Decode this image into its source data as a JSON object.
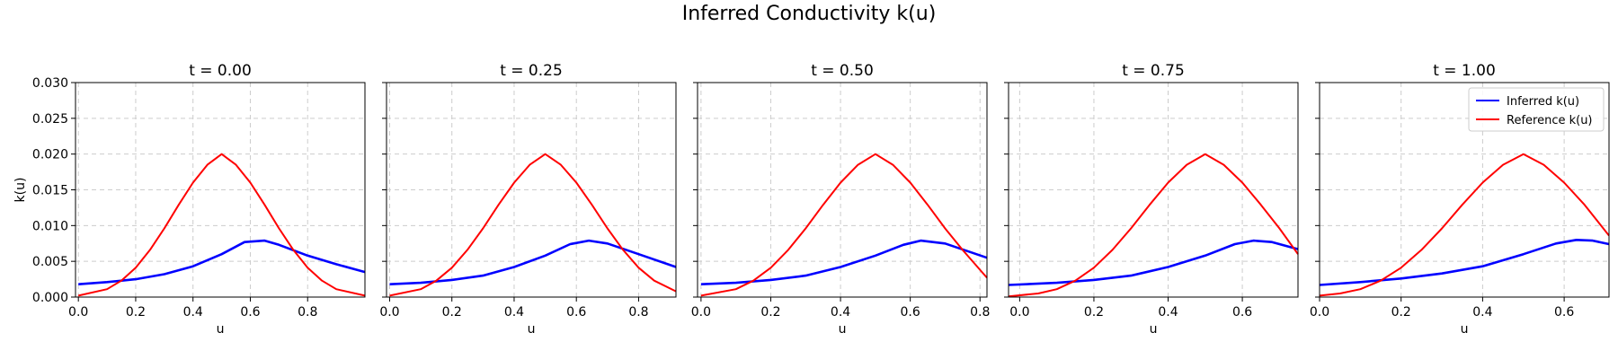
{
  "figure": {
    "title": "Inferred Conductivity k(u)"
  },
  "chart_data": [
    {
      "type": "line",
      "title": "t = 0.00",
      "xlabel": "u",
      "ylabel": "k(u)",
      "xlim": [
        -0.01,
        1.0
      ],
      "ylim": [
        0.0,
        0.03
      ],
      "xticks": [
        "0.0",
        "0.2",
        "0.4",
        "0.6",
        "0.8"
      ],
      "yticks": [
        "0.000",
        "0.005",
        "0.010",
        "0.015",
        "0.020",
        "0.025",
        "0.030"
      ],
      "grid": true,
      "series": [
        {
          "name": "Inferred k(u)",
          "color": "#0000ff",
          "x": [
            0.0,
            0.1,
            0.2,
            0.3,
            0.4,
            0.5,
            0.58,
            0.65,
            0.7,
            0.8,
            0.9,
            1.0
          ],
          "y": [
            0.0018,
            0.0021,
            0.0025,
            0.0032,
            0.0043,
            0.006,
            0.0077,
            0.0079,
            0.0073,
            0.0058,
            0.0046,
            0.0035
          ]
        },
        {
          "name": "Reference k(u)",
          "color": "#ff0000",
          "x": [
            0.0,
            0.1,
            0.15,
            0.2,
            0.25,
            0.3,
            0.35,
            0.4,
            0.45,
            0.5,
            0.55,
            0.6,
            0.65,
            0.7,
            0.75,
            0.8,
            0.85,
            0.9,
            1.0
          ],
          "y": [
            0.0002,
            0.0011,
            0.0023,
            0.0041,
            0.0066,
            0.0096,
            0.0129,
            0.016,
            0.0185,
            0.02,
            0.0185,
            0.016,
            0.0129,
            0.0096,
            0.0066,
            0.0041,
            0.0023,
            0.0011,
            0.0002
          ]
        }
      ]
    },
    {
      "type": "line",
      "title": "t = 0.25",
      "xlabel": "u",
      "xlim": [
        -0.01,
        0.92
      ],
      "ylim": [
        0.0,
        0.03
      ],
      "xticks": [
        "0.0",
        "0.2",
        "0.4",
        "0.6",
        "0.8"
      ],
      "grid": true,
      "series": [
        {
          "name": "Inferred k(u)",
          "color": "#0000ff",
          "x": [
            0.0,
            0.1,
            0.2,
            0.3,
            0.4,
            0.5,
            0.58,
            0.64,
            0.7,
            0.8,
            0.92
          ],
          "y": [
            0.0018,
            0.002,
            0.0024,
            0.003,
            0.0042,
            0.0058,
            0.0074,
            0.0079,
            0.0075,
            0.006,
            0.0042
          ]
        },
        {
          "name": "Reference k(u)",
          "color": "#ff0000",
          "x": [
            0.0,
            0.1,
            0.15,
            0.2,
            0.25,
            0.3,
            0.35,
            0.4,
            0.45,
            0.5,
            0.55,
            0.6,
            0.65,
            0.7,
            0.75,
            0.8,
            0.85,
            0.92
          ],
          "y": [
            0.0002,
            0.0011,
            0.0023,
            0.0041,
            0.0066,
            0.0096,
            0.0129,
            0.016,
            0.0185,
            0.02,
            0.0185,
            0.016,
            0.0129,
            0.0096,
            0.0066,
            0.0041,
            0.0023,
            0.0008
          ]
        }
      ]
    },
    {
      "type": "line",
      "title": "t = 0.50",
      "xlabel": "u",
      "xlim": [
        -0.01,
        0.82
      ],
      "ylim": [
        0.0,
        0.03
      ],
      "xticks": [
        "0.0",
        "0.2",
        "0.4",
        "0.6",
        "0.8"
      ],
      "grid": true,
      "series": [
        {
          "name": "Inferred k(u)",
          "color": "#0000ff",
          "x": [
            0.0,
            0.1,
            0.2,
            0.3,
            0.4,
            0.5,
            0.58,
            0.63,
            0.7,
            0.82
          ],
          "y": [
            0.0018,
            0.002,
            0.0024,
            0.003,
            0.0042,
            0.0058,
            0.0073,
            0.0079,
            0.0075,
            0.0055
          ]
        },
        {
          "name": "Reference k(u)",
          "color": "#ff0000",
          "x": [
            0.0,
            0.1,
            0.15,
            0.2,
            0.25,
            0.3,
            0.35,
            0.4,
            0.45,
            0.5,
            0.55,
            0.6,
            0.65,
            0.7,
            0.75,
            0.82
          ],
          "y": [
            0.0002,
            0.0011,
            0.0023,
            0.0041,
            0.0066,
            0.0096,
            0.0129,
            0.016,
            0.0185,
            0.02,
            0.0185,
            0.016,
            0.0129,
            0.0096,
            0.0066,
            0.0027
          ]
        }
      ]
    },
    {
      "type": "line",
      "title": "t = 0.75",
      "xlabel": "u",
      "xlim": [
        -0.03,
        0.75
      ],
      "ylim": [
        0.0,
        0.03
      ],
      "xticks": [
        "0.0",
        "0.2",
        "0.4",
        "0.6"
      ],
      "grid": true,
      "series": [
        {
          "name": "Inferred k(u)",
          "color": "#0000ff",
          "x": [
            -0.03,
            0.1,
            0.2,
            0.3,
            0.4,
            0.5,
            0.58,
            0.63,
            0.68,
            0.75
          ],
          "y": [
            0.0017,
            0.002,
            0.0024,
            0.003,
            0.0042,
            0.0058,
            0.0074,
            0.0079,
            0.0077,
            0.0067
          ]
        },
        {
          "name": "Reference k(u)",
          "color": "#ff0000",
          "x": [
            -0.03,
            0.05,
            0.1,
            0.15,
            0.2,
            0.25,
            0.3,
            0.35,
            0.4,
            0.45,
            0.5,
            0.55,
            0.6,
            0.65,
            0.7,
            0.75
          ],
          "y": [
            0.0001,
            0.0005,
            0.0011,
            0.0023,
            0.0041,
            0.0066,
            0.0096,
            0.0129,
            0.016,
            0.0185,
            0.02,
            0.0185,
            0.016,
            0.0129,
            0.0096,
            0.006
          ]
        }
      ]
    },
    {
      "type": "line",
      "title": "t = 1.00",
      "xlabel": "u",
      "xlim": [
        0.0,
        0.71
      ],
      "ylim": [
        0.0,
        0.03
      ],
      "xticks": [
        "0.0",
        "0.2",
        "0.4",
        "0.6"
      ],
      "grid": true,
      "legend": "top-right",
      "series": [
        {
          "name": "Inferred k(u)",
          "color": "#0000ff",
          "x": [
            0.0,
            0.1,
            0.2,
            0.3,
            0.4,
            0.5,
            0.58,
            0.63,
            0.67,
            0.71
          ],
          "y": [
            0.0017,
            0.0021,
            0.0026,
            0.0033,
            0.0043,
            0.006,
            0.0075,
            0.008,
            0.0079,
            0.0074
          ]
        },
        {
          "name": "Reference k(u)",
          "color": "#ff0000",
          "x": [
            0.0,
            0.05,
            0.1,
            0.15,
            0.2,
            0.25,
            0.3,
            0.35,
            0.4,
            0.45,
            0.5,
            0.55,
            0.6,
            0.65,
            0.71
          ],
          "y": [
            0.0002,
            0.0005,
            0.0011,
            0.0023,
            0.0041,
            0.0066,
            0.0096,
            0.0129,
            0.016,
            0.0185,
            0.02,
            0.0185,
            0.016,
            0.0129,
            0.0086
          ]
        }
      ]
    }
  ]
}
